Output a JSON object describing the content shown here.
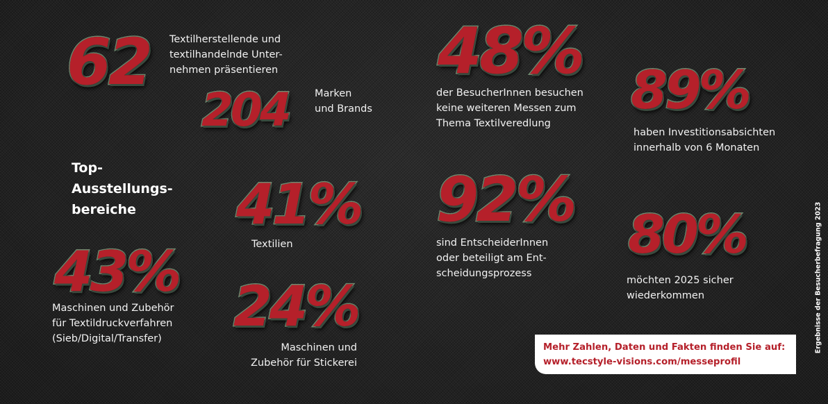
{
  "stats": {
    "s62": {
      "number": "62",
      "text": "Textilherstellende und\ntextilhandelnde Unter-\nnehmen präsentieren"
    },
    "s204": {
      "number": "204",
      "text": "Marken\nund Brands"
    },
    "s48": {
      "number": "48%",
      "text": "der BesucherInnen besuchen\nkeine weiteren Messen zum\nThema Textilveredlung"
    },
    "s89": {
      "number": "89%",
      "text": "haben Investitionsabsichten\ninnerhalb von 6 Monaten"
    },
    "s41": {
      "number": "41%",
      "text": "Textilien"
    },
    "s92": {
      "number": "92%",
      "text": "sind EntscheiderInnen\noder beteiligt am Ent-\nscheidungsprozess"
    },
    "s80": {
      "number": "80%",
      "text": "möchten 2025 sicher\nwiederkommen"
    },
    "s43": {
      "number": "43%",
      "text": "Maschinen und Zubehör\nfür Textildruckverfahren\n(Sieb/Digital/Transfer)"
    },
    "s24": {
      "number": "24%",
      "text": "Maschinen und\nZubehör für Stickerei"
    }
  },
  "heading": "Top-\nAusstellungs-\nbereiche",
  "cta": {
    "line1": "Mehr Zahlen, Daten und Fakten finden Sie auf:",
    "line2": "www.tecstyle-visions.com/messeprofil"
  },
  "side_note": "Ergebnisse der Besucherbefragung 2023",
  "colors": {
    "number_fill": "#b5202a",
    "number_outline": "#6f8a70",
    "background": "#232323",
    "cta_text": "#b5202a"
  }
}
